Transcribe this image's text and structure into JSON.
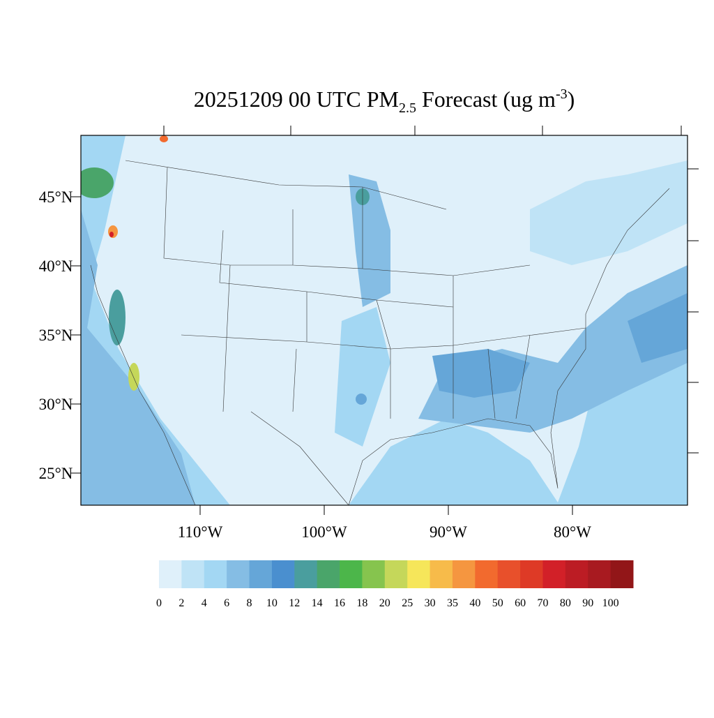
{
  "title": {
    "main": "20251209 00 UTC PM",
    "sub": "2.5",
    "middle": " Forecast (ug m",
    "sup": "-3",
    "end": ")"
  },
  "map": {
    "lat_ticks": [
      {
        "value": 45,
        "label": "45°N"
      },
      {
        "value": 40,
        "label": "40°N"
      },
      {
        "value": 35,
        "label": "35°N"
      },
      {
        "value": 30,
        "label": "30°N"
      },
      {
        "value": 25,
        "label": "25°N"
      }
    ],
    "lon_ticks": [
      {
        "value": -110,
        "label": "110°W"
      },
      {
        "value": -100,
        "label": "100°W"
      },
      {
        "value": -90,
        "label": "90°W"
      },
      {
        "value": -80,
        "label": "80°W"
      }
    ]
  },
  "colorbar": {
    "levels": [
      0,
      2,
      4,
      6,
      8,
      10,
      12,
      14,
      16,
      18,
      20,
      25,
      30,
      35,
      40,
      50,
      60,
      70,
      80,
      90,
      100
    ],
    "colors": [
      "#dff0fa",
      "#bfe3f6",
      "#a3d7f3",
      "#85bde4",
      "#65a6d8",
      "#4a8fcf",
      "#4a9e9e",
      "#4aa56a",
      "#4cb64a",
      "#86c44e",
      "#c5d75a",
      "#f6e65a",
      "#f7bb4a",
      "#f59640",
      "#f26a2e",
      "#e8502b",
      "#de3a26",
      "#d22028",
      "#bc1c24",
      "#a81a20",
      "#921618"
    ]
  }
}
